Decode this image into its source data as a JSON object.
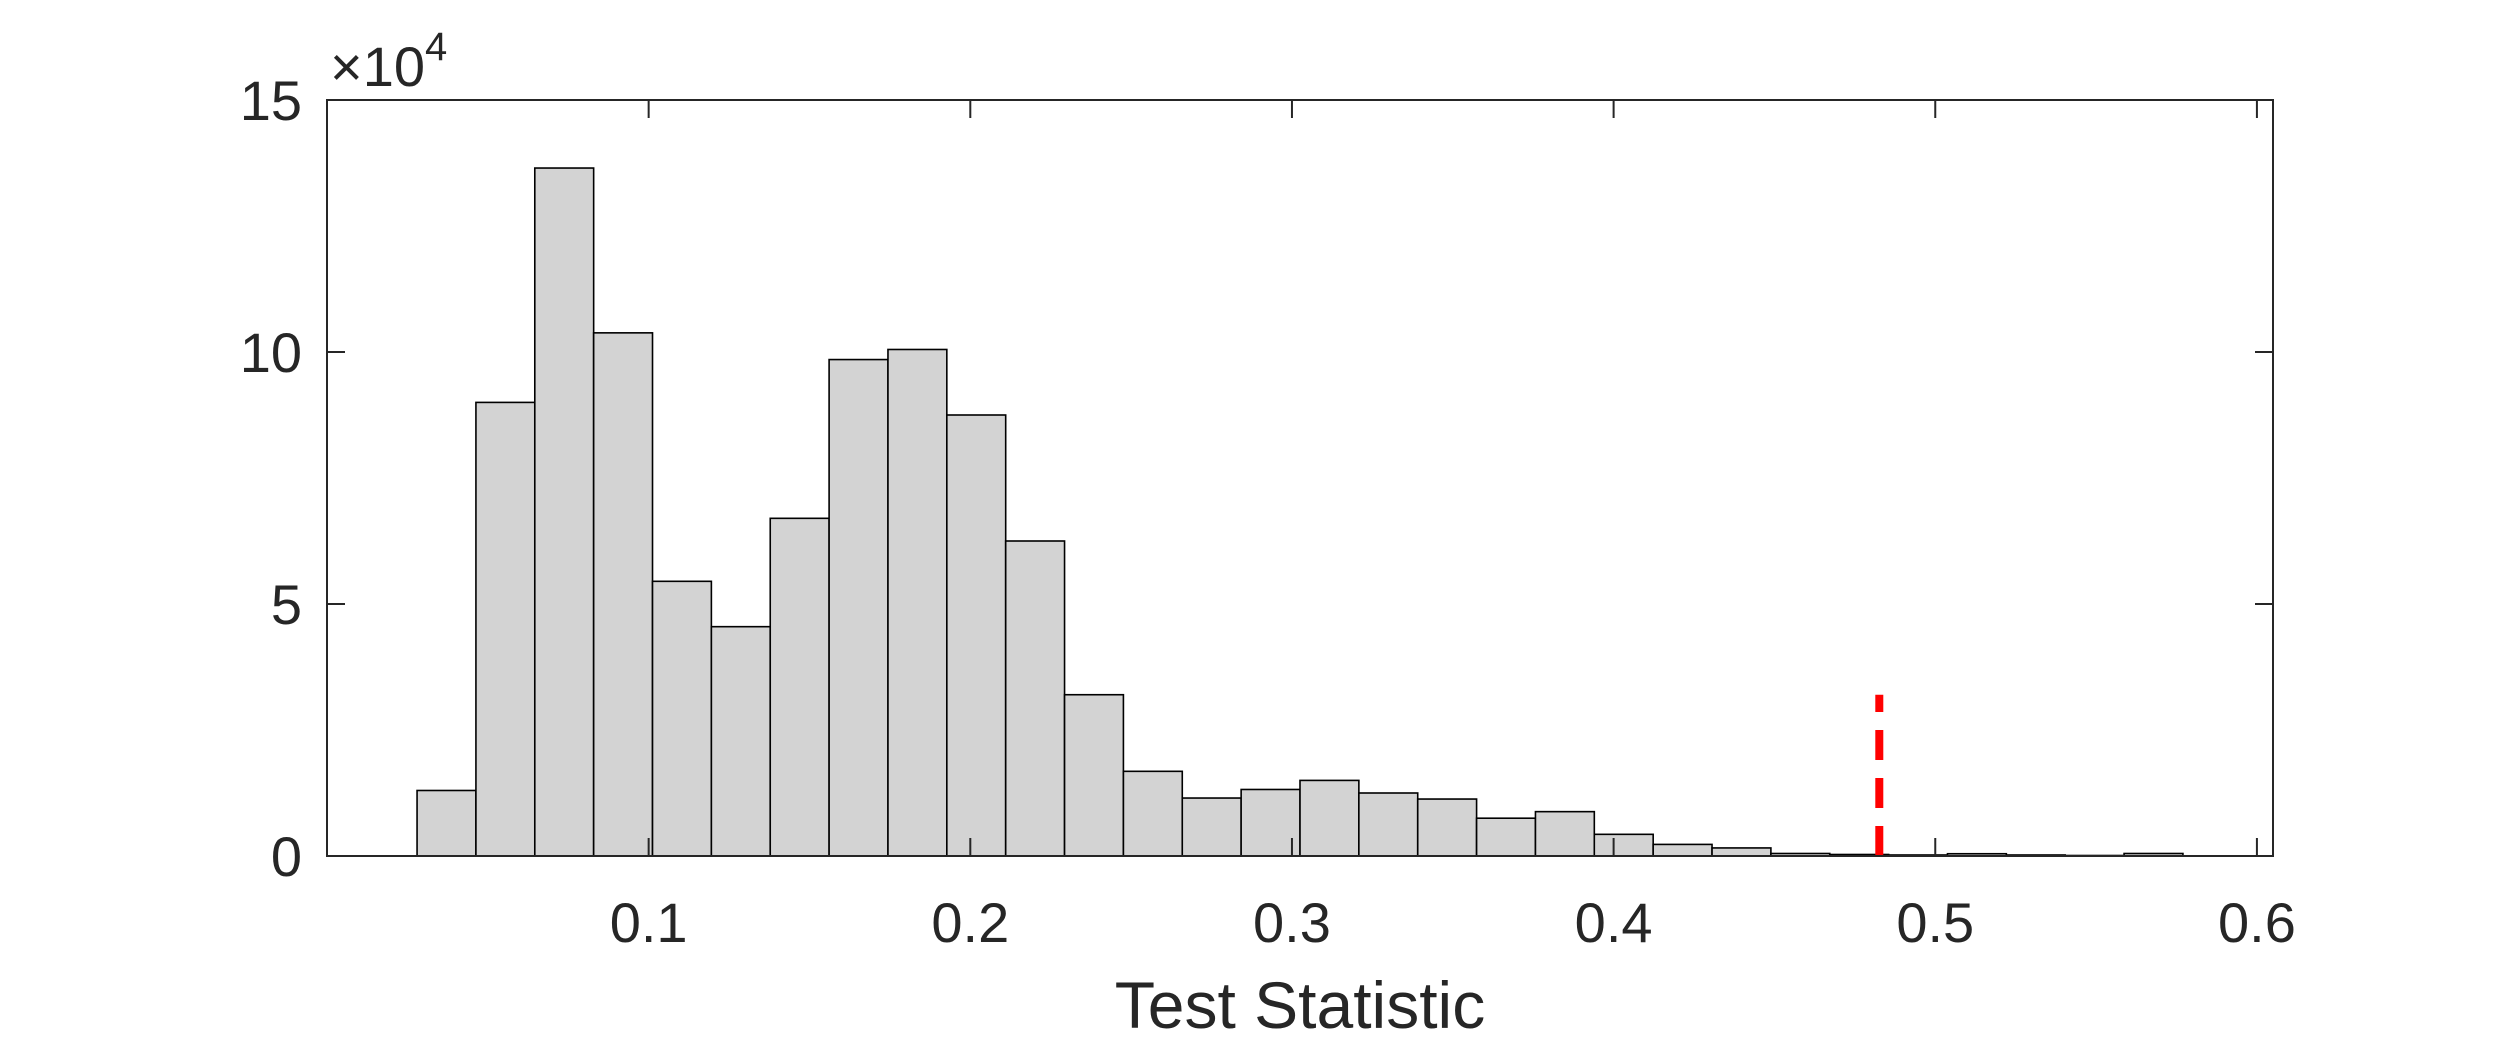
{
  "chart_data": {
    "type": "bar",
    "xlabel": "Test Statistic",
    "ylabel": "",
    "y_multiplier_base": "10",
    "y_multiplier_exponent": "4",
    "xlim": [
      0.0,
      0.605
    ],
    "ylim": [
      0,
      150000
    ],
    "xticks": [
      0.1,
      0.2,
      0.3,
      0.4,
      0.5,
      0.6
    ],
    "xtick_labels": [
      "0.1",
      "0.2",
      "0.3",
      "0.4",
      "0.5",
      "0.6"
    ],
    "yticks": [
      0,
      50000,
      100000,
      150000
    ],
    "ytick_labels": [
      "0",
      "5",
      "10",
      "15"
    ],
    "bin_edges": [
      0.028,
      0.0463,
      0.0646,
      0.0829,
      0.1012,
      0.1195,
      0.1378,
      0.1561,
      0.1744,
      0.1927,
      0.211,
      0.2293,
      0.2476,
      0.2659,
      0.2842,
      0.3025,
      0.3208,
      0.3391,
      0.3574,
      0.3757,
      0.394,
      0.4123,
      0.4306,
      0.4489,
      0.4672,
      0.4855,
      0.5038,
      0.5221,
      0.5404,
      0.5587,
      0.577
    ],
    "values": [
      13000,
      90000,
      136500,
      103800,
      54500,
      45500,
      67000,
      98500,
      100500,
      87500,
      62500,
      32000,
      16800,
      11500,
      13200,
      15000,
      12500,
      11300,
      7500,
      8800,
      4300,
      2300,
      1600,
      500,
      300,
      200,
      450,
      200,
      100,
      500
    ],
    "bar_fill": "#d3d3d3",
    "bar_edge": "#000000",
    "threshold_line": {
      "x": 0.4826,
      "y_top": 32000,
      "color": "#ff0000",
      "style": "dashed"
    },
    "grid": false,
    "legend": "none"
  }
}
